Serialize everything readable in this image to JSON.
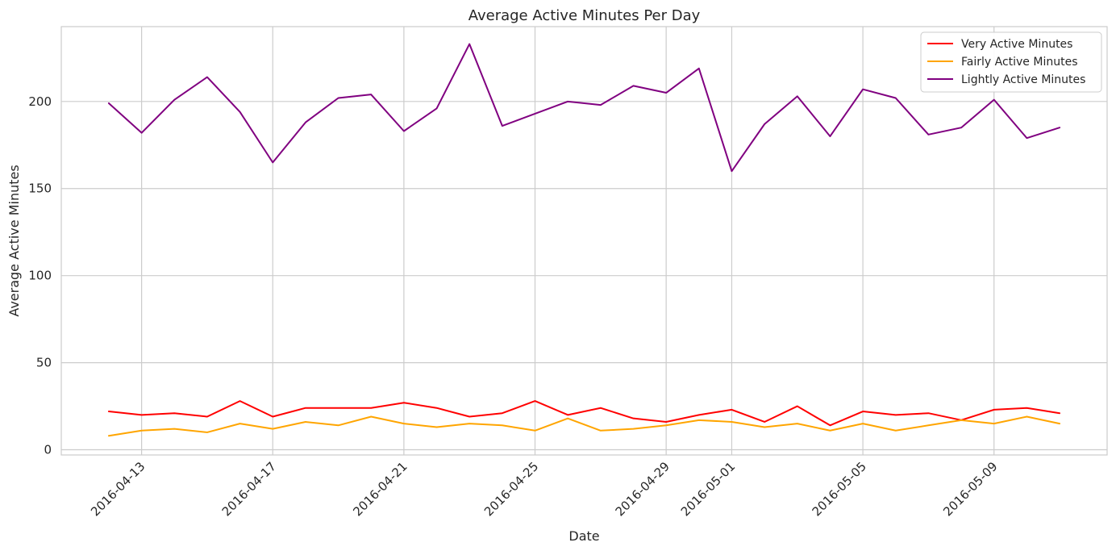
{
  "chart_data": {
    "type": "line",
    "title": "Average Active Minutes Per Day",
    "xlabel": "Date",
    "ylabel": "Average Active Minutes",
    "x": [
      "2016-04-12",
      "2016-04-13",
      "2016-04-14",
      "2016-04-15",
      "2016-04-16",
      "2016-04-17",
      "2016-04-18",
      "2016-04-19",
      "2016-04-20",
      "2016-04-21",
      "2016-04-22",
      "2016-04-23",
      "2016-04-24",
      "2016-04-25",
      "2016-04-26",
      "2016-04-27",
      "2016-04-28",
      "2016-04-29",
      "2016-04-30",
      "2016-05-01",
      "2016-05-02",
      "2016-05-03",
      "2016-05-04",
      "2016-05-05",
      "2016-05-06",
      "2016-05-07",
      "2016-05-08",
      "2016-05-09",
      "2016-05-10",
      "2016-05-11"
    ],
    "x_ticks": [
      "2016-04-13",
      "2016-04-17",
      "2016-04-21",
      "2016-04-25",
      "2016-04-29",
      "2016-05-01",
      "2016-05-05",
      "2016-05-09"
    ],
    "y_ticks": [
      0,
      50,
      100,
      150,
      200
    ],
    "ylim": [
      -3,
      243
    ],
    "grid": true,
    "legend_position": "top-right",
    "series": [
      {
        "name": "Very Active Minutes",
        "color": "#ff0000",
        "values": [
          22,
          20,
          21,
          19,
          28,
          19,
          24,
          24,
          24,
          27,
          24,
          19,
          21,
          28,
          20,
          24,
          18,
          16,
          20,
          23,
          16,
          25,
          14,
          22,
          20,
          21,
          17,
          23,
          24,
          21
        ]
      },
      {
        "name": "Fairly Active Minutes",
        "color": "#ffa500",
        "values": [
          8,
          11,
          12,
          10,
          15,
          12,
          16,
          14,
          19,
          15,
          13,
          15,
          14,
          11,
          18,
          11,
          12,
          14,
          17,
          16,
          13,
          15,
          11,
          15,
          11,
          14,
          17,
          15,
          19,
          15
        ]
      },
      {
        "name": "Lightly Active Minutes",
        "color": "#800080",
        "values": [
          199,
          182,
          201,
          214,
          194,
          165,
          188,
          202,
          204,
          183,
          196,
          233,
          186,
          193,
          200,
          198,
          209,
          205,
          219,
          160,
          187,
          203,
          180,
          207,
          202,
          181,
          185,
          201,
          179,
          185
        ]
      }
    ]
  }
}
